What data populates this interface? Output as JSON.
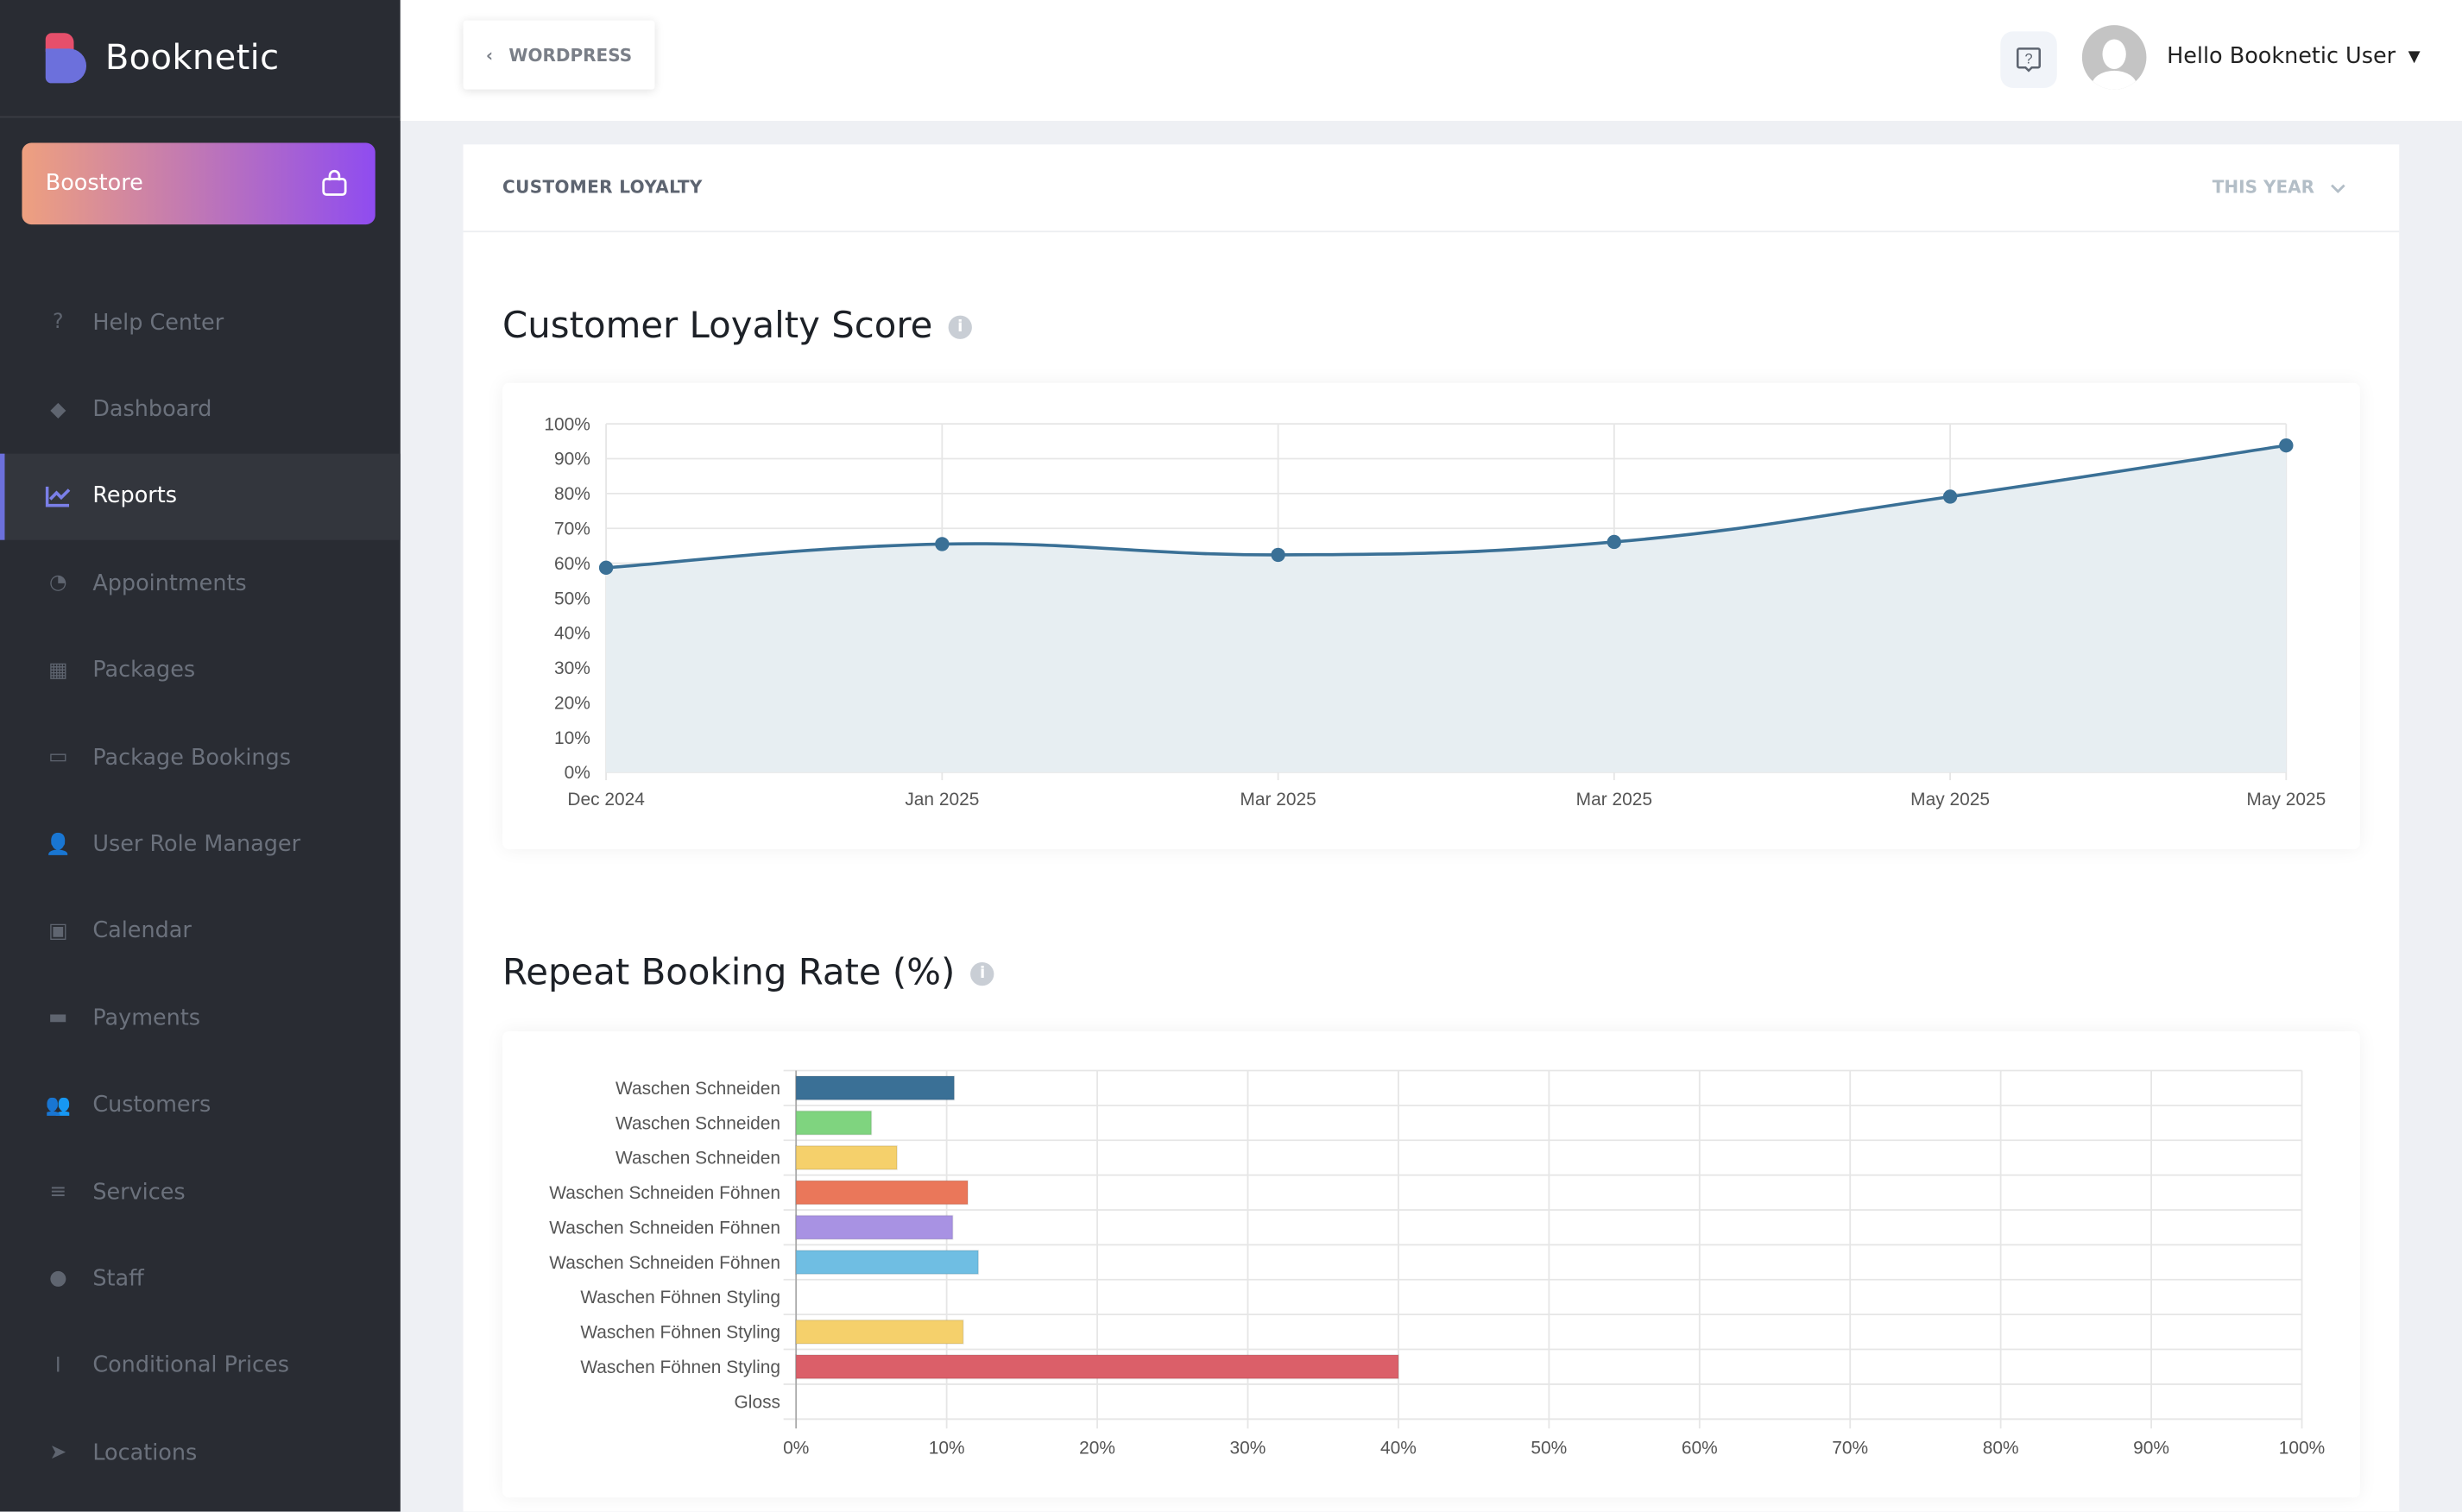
{
  "app": {
    "name": "Booknetic"
  },
  "sidebar": {
    "boostore_label": "Boostore",
    "items": [
      {
        "label": "Help Center",
        "icon": "question-circle-icon"
      },
      {
        "label": "Dashboard",
        "icon": "cube-icon"
      },
      {
        "label": "Reports",
        "icon": "chart-line-icon",
        "active": true
      },
      {
        "label": "Appointments",
        "icon": "clock-icon"
      },
      {
        "label": "Packages",
        "icon": "boxes-icon"
      },
      {
        "label": "Package Bookings",
        "icon": "open-box-icon"
      },
      {
        "label": "User Role Manager",
        "icon": "user-plus-icon"
      },
      {
        "label": "Calendar",
        "icon": "calendar-check-icon"
      },
      {
        "label": "Payments",
        "icon": "wallet-icon"
      },
      {
        "label": "Customers",
        "icon": "users-icon"
      },
      {
        "label": "Services",
        "icon": "list-icon"
      },
      {
        "label": "Staff",
        "icon": "user-icon"
      },
      {
        "label": "Conditional Prices",
        "icon": "i-cursor-icon"
      },
      {
        "label": "Locations",
        "icon": "location-arrow-icon"
      }
    ]
  },
  "topbar": {
    "back_label": "WORDPRESS",
    "user_greeting": "Hello Booknetic User"
  },
  "card": {
    "title": "CUSTOMER LOYALTY",
    "period": "THIS YEAR"
  },
  "colors": {
    "sidebar_bg": "#292c33",
    "accent": "#6c70dc",
    "line": "#3a7096",
    "area": "#e7eef2"
  },
  "chart_data": [
    {
      "type": "area",
      "title": "Customer Loyalty Score",
      "categories": [
        "Dec 2024",
        "Jan 2025",
        "Mar 2025",
        "Mar 2025",
        "May 2025",
        "May 2025"
      ],
      "values": [
        58.7,
        65.5,
        62.4,
        66.1,
        79.1,
        93.8
      ],
      "ylim": [
        0,
        100
      ],
      "yticks": [
        "0%",
        "10%",
        "20%",
        "30%",
        "40%",
        "50%",
        "60%",
        "70%",
        "80%",
        "90%",
        "100%"
      ],
      "grid": true,
      "color": "#3a7096"
    },
    {
      "type": "bar",
      "orientation": "horizontal",
      "title": "Repeat Booking Rate (%)",
      "categories": [
        "Waschen Schneiden",
        "Waschen Schneiden",
        "Waschen Schneiden",
        "Waschen Schneiden Föhnen",
        "Waschen Schneiden Föhnen",
        "Waschen Schneiden Föhnen",
        "Waschen Föhnen Styling",
        "Waschen Föhnen Styling",
        "Waschen Föhnen Styling",
        "Gloss"
      ],
      "values": [
        10.5,
        5.0,
        6.7,
        11.4,
        10.4,
        12.1,
        0,
        11.1,
        40.0,
        0
      ],
      "colors": [
        "#3a7096",
        "#7fd47f",
        "#f5d06b",
        "#ea775a",
        "#a892e3",
        "#6fbee3",
        "#cccccc",
        "#f5d06b",
        "#db5f69",
        "#cccccc"
      ],
      "xlim": [
        0,
        100
      ],
      "xticks": [
        "0%",
        "10%",
        "20%",
        "30%",
        "40%",
        "50%",
        "60%",
        "70%",
        "80%",
        "90%",
        "100%"
      ],
      "grid": true
    }
  ]
}
